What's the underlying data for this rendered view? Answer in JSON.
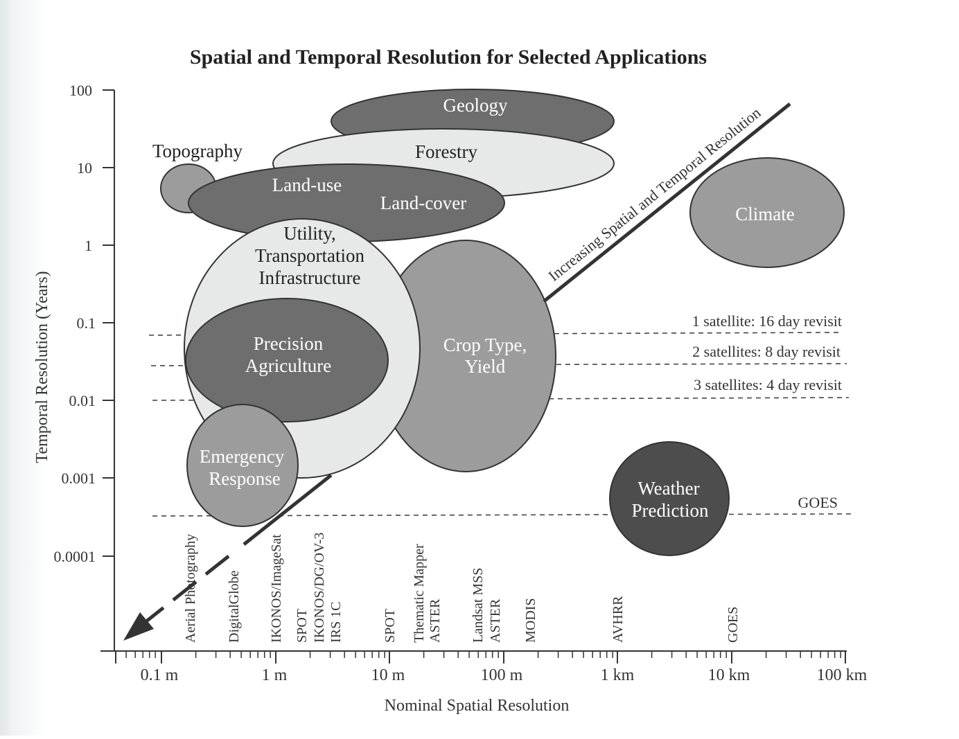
{
  "title": "Spatial and Temporal Resolution for Selected Applications",
  "y_axis": {
    "label": "Temporal Resolution (Years)",
    "ticks": [
      "100",
      "10",
      "1",
      "0.1",
      "0.01",
      "0.001",
      "0.0001"
    ]
  },
  "x_axis": {
    "label": "Nominal Spatial Resolution",
    "ticks": [
      "0.1 m",
      "1 m",
      "10 m",
      "100 m",
      "1 km",
      "10 km",
      "100 km"
    ]
  },
  "trend_label": "Increasing Spatial and Temporal Resolution",
  "applications": {
    "geology": "Geology",
    "forestry": "Forestry",
    "topography": "Topography",
    "land_use": "Land-use",
    "land_cover": "Land-cover",
    "climate": "Climate",
    "utility": [
      "Utility,",
      "Transportation",
      "Infrastructure"
    ],
    "precision": [
      "Precision",
      "Agriculture"
    ],
    "crop": [
      "Crop Type,",
      "Yield"
    ],
    "emergency": [
      "Emergency",
      "Response"
    ],
    "weather": [
      "Weather",
      "Prediction"
    ]
  },
  "revisit_lines": [
    "1 satellite:  16 day revisit",
    "2 satellites:  8 day revisit",
    "3 satellites:  4 day revisit",
    "GOES"
  ],
  "sensors": {
    "aerial": "Aerial Photography",
    "digitalglobe": "DigitalGlobe",
    "ikonos_imagesat": "IKONOS/ImageSat",
    "spot_ikonos_irs": [
      "SPOT",
      "IKONOS/DG/OV-3",
      "IRS 1C"
    ],
    "spot": "SPOT",
    "tm_aster": [
      "Thematic Mapper",
      "ASTER"
    ],
    "mss_aster": [
      "Landsat MSS",
      "ASTER"
    ],
    "modis": "MODIS",
    "avhrr": "AVHRR",
    "goes": "GOES"
  }
}
